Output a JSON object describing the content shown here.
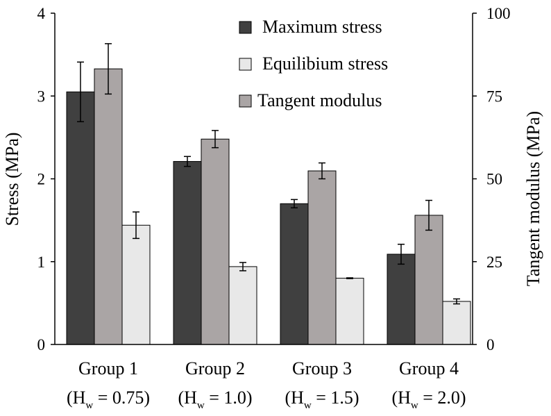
{
  "chart_data": {
    "type": "bar",
    "categories": [
      "Group 1",
      "Group 2",
      "Group 3",
      "Group 4"
    ],
    "subcategories": [
      {
        "prefix": "(H",
        "sub": "w",
        "suffix": " = 0.75)"
      },
      {
        "prefix": "(H",
        "sub": "w",
        "suffix": " = 1.0)"
      },
      {
        "prefix": "(H",
        "sub": "w",
        "suffix": " = 1.5)"
      },
      {
        "prefix": "(H",
        "sub": "w",
        "suffix": " = 2.0)"
      }
    ],
    "series": [
      {
        "name": "Maximum stress",
        "axis": "left",
        "color": "#404040",
        "values": [
          3.05,
          2.21,
          1.7,
          1.09
        ],
        "errors": [
          0.36,
          0.06,
          0.05,
          0.12
        ]
      },
      {
        "name": "Tangent modulus",
        "axis": "right",
        "color": "#aaa5a5",
        "values": [
          83.2,
          62.0,
          52.4,
          39.0
        ],
        "errors": [
          7.6,
          2.6,
          2.4,
          4.5
        ]
      },
      {
        "name": "Equilibium stress",
        "axis": "left",
        "color": "#e8e8e8",
        "values": [
          1.44,
          0.94,
          0.8,
          0.52
        ],
        "errors": [
          0.16,
          0.05,
          0.005,
          0.03
        ]
      }
    ],
    "legend_order": [
      "Maximum stress",
      "Equilibium stress",
      "Tangent modulus"
    ],
    "ylabel": "Stress (MPa)",
    "ylabel_right": "Tangent modulus (MPa)",
    "ylim": [
      0,
      4
    ],
    "ylim_right": [
      0,
      100
    ],
    "yticks": [
      0,
      1,
      2,
      3,
      4
    ],
    "yticks_right": [
      0,
      25,
      50,
      75,
      100
    ],
    "grid": false,
    "legend_position": "top-right"
  }
}
